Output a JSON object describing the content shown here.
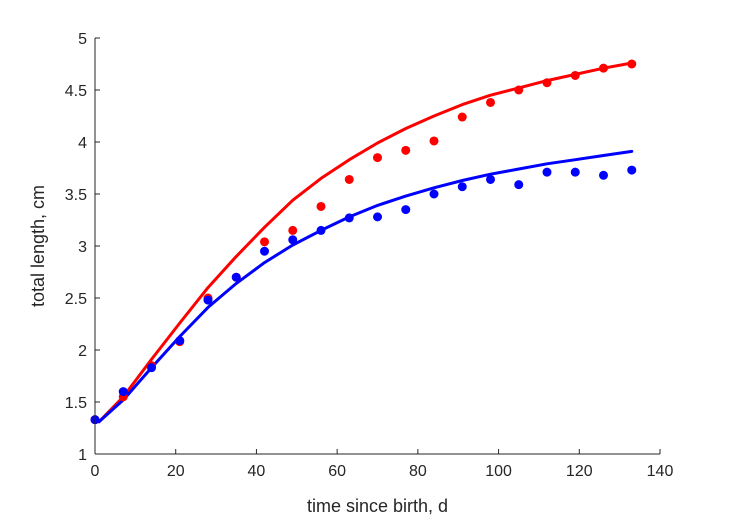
{
  "chart_data": {
    "type": "scatter",
    "xlabel": "time since birth, d",
    "ylabel": "total length, cm",
    "xlim": [
      0,
      140
    ],
    "ylim": [
      1,
      5
    ],
    "xticks": [
      0,
      20,
      40,
      60,
      80,
      100,
      120,
      140
    ],
    "yticks": [
      1,
      1.5,
      2,
      2.5,
      3,
      3.5,
      4,
      4.5,
      5
    ],
    "grid": false,
    "series": [
      {
        "color": "#ff0000",
        "marker": "dot",
        "x": [
          0,
          7,
          14,
          21,
          28,
          35,
          42,
          49,
          56,
          63,
          70,
          77,
          84,
          91,
          98,
          105,
          112,
          119,
          126,
          133
        ],
        "y": [
          1.33,
          1.55,
          1.85,
          2.08,
          2.5,
          2.7,
          3.04,
          3.15,
          3.38,
          3.64,
          3.85,
          3.92,
          4.01,
          4.24,
          4.38,
          4.5,
          4.57,
          4.64,
          4.71,
          4.75
        ]
      },
      {
        "color": "#0000ff",
        "marker": "dot",
        "x": [
          0,
          7,
          14,
          21,
          28,
          35,
          42,
          49,
          56,
          63,
          70,
          77,
          84,
          91,
          98,
          105,
          112,
          119,
          126,
          133
        ],
        "y": [
          1.33,
          1.6,
          1.83,
          2.09,
          2.48,
          2.7,
          2.95,
          3.06,
          3.15,
          3.27,
          3.28,
          3.35,
          3.5,
          3.57,
          3.64,
          3.59,
          3.71,
          3.71,
          3.68,
          3.73
        ]
      },
      {
        "color": "#ff0000",
        "marker": "line",
        "x": [
          1,
          7,
          14,
          21,
          28,
          35,
          42,
          49,
          56,
          63,
          70,
          77,
          84,
          91,
          98,
          105,
          112,
          119,
          126,
          133
        ],
        "y": [
          1.31,
          1.55,
          1.91,
          2.26,
          2.6,
          2.9,
          3.18,
          3.44,
          3.65,
          3.83,
          3.99,
          4.13,
          4.25,
          4.36,
          4.45,
          4.52,
          4.59,
          4.65,
          4.71,
          4.76
        ]
      },
      {
        "color": "#0000ff",
        "marker": "line",
        "x": [
          1,
          7,
          14,
          21,
          28,
          35,
          42,
          49,
          56,
          63,
          70,
          77,
          84,
          91,
          98,
          105,
          112,
          119,
          126,
          133
        ],
        "y": [
          1.31,
          1.52,
          1.83,
          2.13,
          2.41,
          2.64,
          2.84,
          3.01,
          3.15,
          3.28,
          3.39,
          3.48,
          3.56,
          3.63,
          3.69,
          3.74,
          3.79,
          3.83,
          3.87,
          3.91
        ]
      }
    ]
  }
}
